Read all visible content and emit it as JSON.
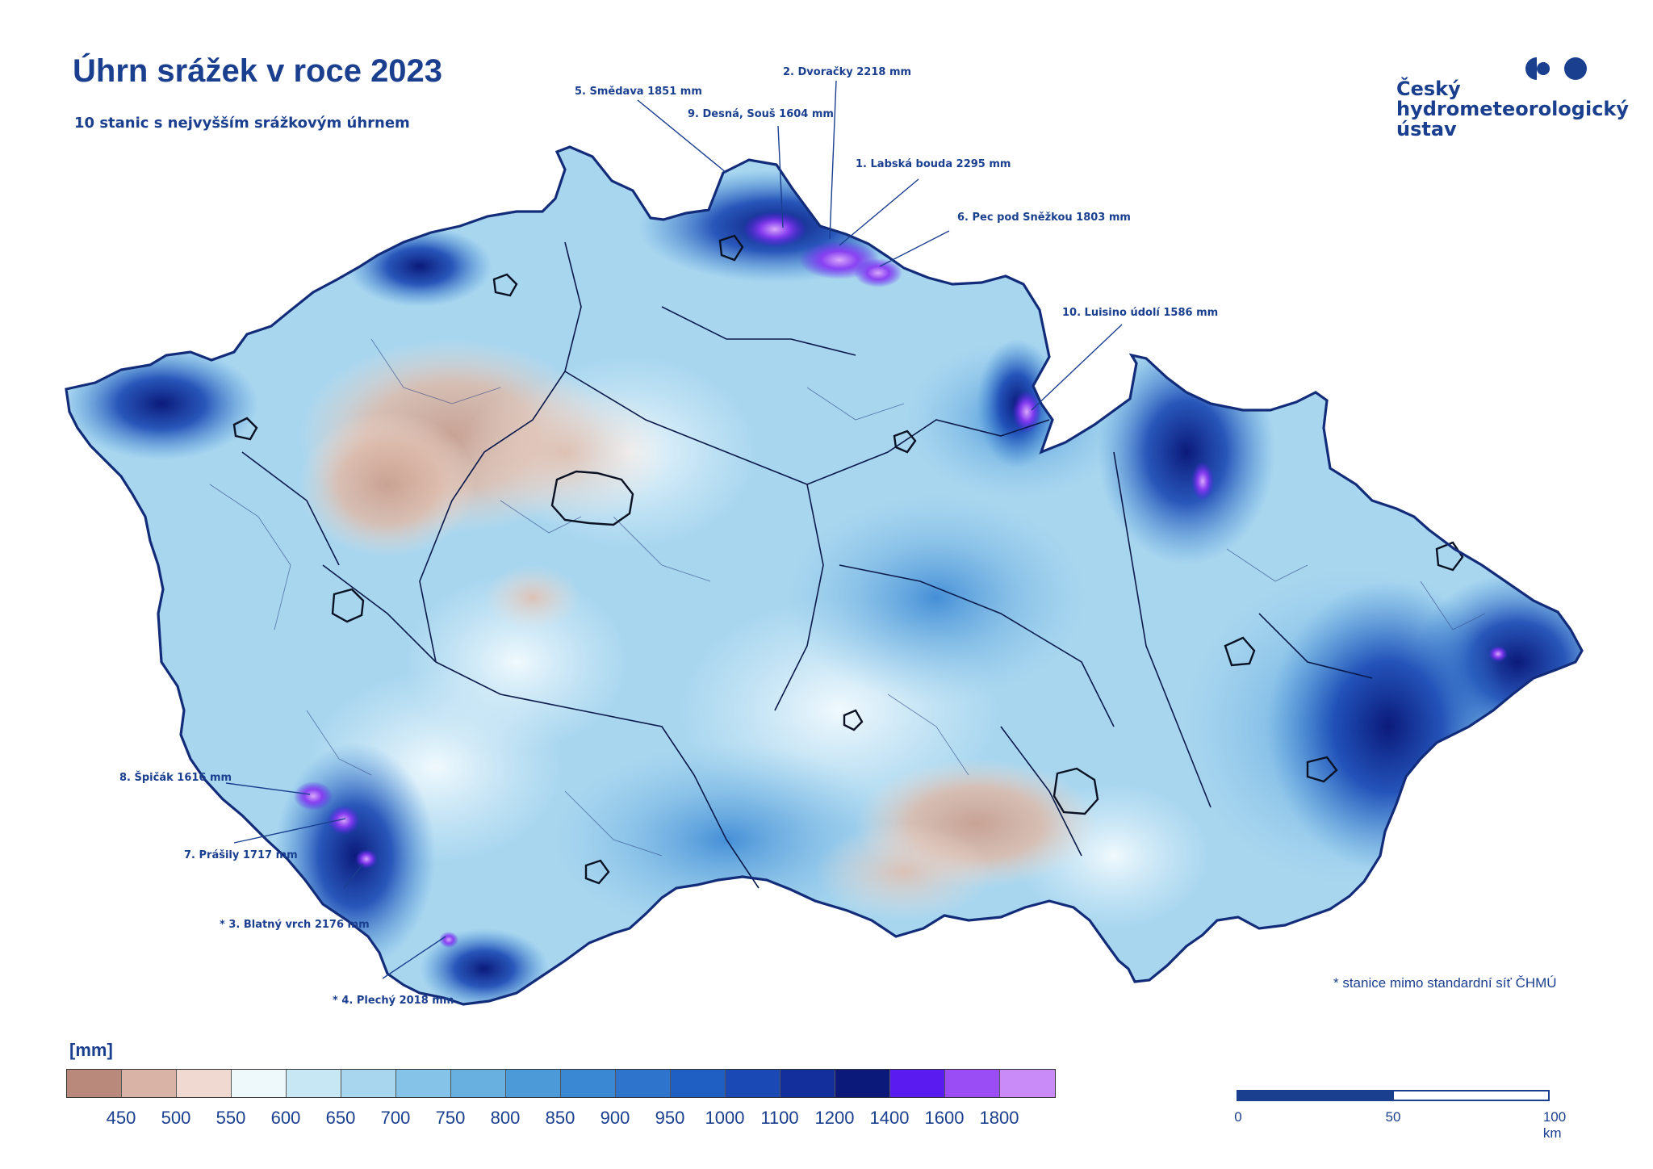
{
  "title": "Úhrn srážek v roce 2023",
  "subtitle": "10 stanic s nejvyšším srážkovým úhrnem",
  "logo": {
    "line1": "Český",
    "line2": "hydrometeorologický",
    "line3": "ústav",
    "color": "#1a3f8f"
  },
  "stations": [
    {
      "id": "s1",
      "label": "1. Labská bouda 2295 mm"
    },
    {
      "id": "s2",
      "label": "2. Dvoračky 2218 mm"
    },
    {
      "id": "s3",
      "label": "* 3. Blatný vrch 2176 mm"
    },
    {
      "id": "s4",
      "label": "* 4. Plechý 2018 mm"
    },
    {
      "id": "s5",
      "label": "5. Smědava 1851 mm"
    },
    {
      "id": "s6",
      "label": "6. Pec pod Sněžkou 1803 mm"
    },
    {
      "id": "s7",
      "label": "7. Prášily 1717 mm"
    },
    {
      "id": "s8",
      "label": "8. Špičák 1616 mm"
    },
    {
      "id": "s9",
      "label": "9. Desná, Souš 1604 mm"
    },
    {
      "id": "s10",
      "label": "10. Luisino údolí 1586 mm"
    }
  ],
  "footnote": "* stanice mimo standardní síť ČHMÚ",
  "legend": {
    "unit": "[mm]",
    "colors": [
      "#b98a7c",
      "#d9b3a5",
      "#f0d9d0",
      "#eef9fc",
      "#c7e7f5",
      "#a8d6ef",
      "#86c3e8",
      "#67b0e0",
      "#4d9ad8",
      "#3a87d4",
      "#2f74cc",
      "#1f5fc4",
      "#1a48b4",
      "#122f9c",
      "#0b1a7a",
      "#5a1bf0",
      "#9a4cf5",
      "#c98bf7"
    ],
    "ticks": [
      "450",
      "500",
      "550",
      "600",
      "650",
      "700",
      "750",
      "800",
      "850",
      "900",
      "950",
      "1000",
      "1100",
      "1200",
      "1400",
      "1600",
      "1800"
    ]
  },
  "scalebar": {
    "labels": [
      "0",
      "50",
      "100 km"
    ]
  }
}
